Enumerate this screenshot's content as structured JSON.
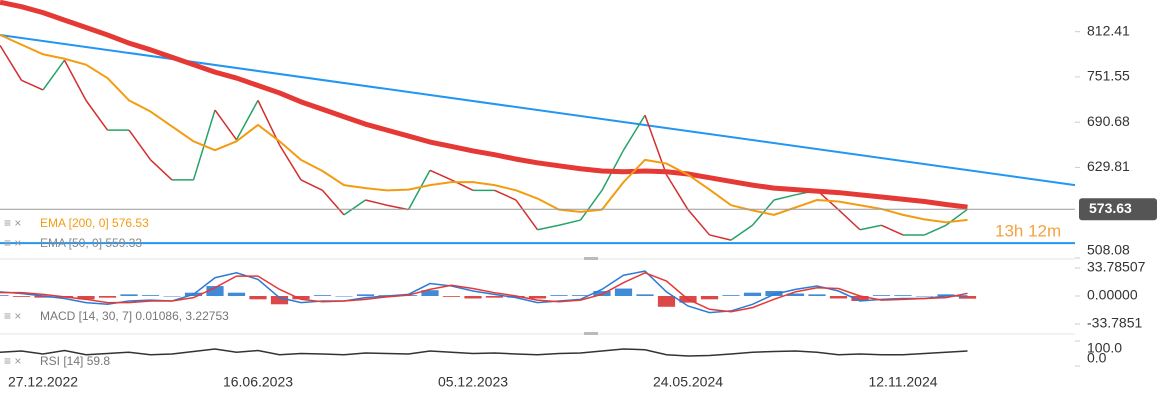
{
  "chart_data": [
    {
      "type": "line",
      "categories": [
        null,
        null,
        "27.12.2022",
        null,
        null,
        null,
        null,
        null,
        null,
        null,
        null,
        null,
        "16.06.2023",
        null,
        null,
        null,
        null,
        null,
        null,
        null,
        null,
        null,
        "05.12.2023",
        null,
        null,
        null,
        null,
        null,
        null,
        null,
        null,
        null,
        "24.05.2024",
        null,
        null,
        null,
        null,
        null,
        null,
        null,
        null,
        null,
        "12.11.2024",
        null,
        null,
        null
      ],
      "ylim": [
        508,
        855
      ],
      "yticks": [
        812.41,
        751.55,
        690.68,
        629.81,
        508.08
      ],
      "up_color": "#26a269",
      "down_color": "#d32f2f",
      "series": [
        {
          "values": [
            794,
            747,
            734,
            774,
            720,
            680,
            680,
            640,
            613,
            613,
            707,
            667,
            720,
            660,
            613,
            599,
            566,
            586,
            579,
            573,
            626,
            613,
            599,
            599,
            586,
            546,
            552,
            559,
            599,
            653,
            700,
            620,
            573,
            539,
            532,
            552,
            586,
            593,
            599,
            573,
            546,
            552,
            539,
            539,
            552,
            573.63
          ],
          "price_label": "573.63"
        },
        {
          "name": "EMA [200, 0] 576.53",
          "color": "#e53935",
          "values": [
            852,
            846,
            838,
            828,
            818,
            808,
            797,
            788,
            778,
            768,
            758,
            750,
            740,
            730,
            718,
            708,
            698,
            688,
            680,
            672,
            664,
            658,
            652,
            647,
            641,
            636,
            632,
            628,
            625,
            624,
            625,
            624,
            621,
            616,
            611,
            606,
            602,
            600,
            598,
            596,
            593,
            590,
            587,
            584,
            580,
            576.53
          ]
        },
        {
          "name": "EMA [50, 0] 559.33",
          "color": "#f39c12",
          "values": [
            808,
            795,
            782,
            776,
            768,
            750,
            720,
            705,
            685,
            665,
            653,
            665,
            687,
            665,
            640,
            625,
            606,
            602,
            599,
            600,
            606,
            610,
            610,
            606,
            599,
            588,
            573,
            570,
            573,
            610,
            640,
            635,
            620,
            600,
            579,
            572,
            566,
            576,
            586,
            584,
            579,
            574,
            566,
            560,
            556,
            559.33
          ]
        }
      ],
      "trendlines": [
        {
          "y": [
            808,
            606
          ],
          "color": "#2196f3"
        },
        {
          "y": [
            528,
            528
          ],
          "color": "#2196f3"
        }
      ],
      "countdown": "13h 12m"
    },
    {
      "type": "macd",
      "legend": "MACD [14, 30, 7] 0.01086, 3.22753",
      "ylim": [
        -43.4,
        43.4
      ],
      "yticks": [
        33.78507,
        {
          "value": 0,
          "label": "0.00000"
        },
        -33.7851
      ],
      "series": [
        {
          "style": "histogram",
          "up_color": "#1f77d0",
          "down_color": "#d62728",
          "values": [
            1,
            -1,
            -2,
            -2,
            -4,
            -2,
            2,
            1,
            0,
            4,
            12,
            4,
            -4,
            -10,
            -4,
            1,
            0,
            2,
            1,
            1,
            7,
            -1,
            -3,
            -2,
            -2,
            -3,
            1,
            1,
            6,
            9,
            2,
            -13,
            -8,
            -4,
            1,
            4,
            6,
            3,
            2,
            -3,
            -6,
            1,
            1,
            0,
            2,
            -3.21667
          ]
        },
        {
          "style": "line",
          "color": "#2b7bd6",
          "values": [
            5,
            3,
            0,
            -3,
            -8,
            -10,
            -6,
            -5,
            -6,
            2,
            22,
            28,
            20,
            -2,
            -8,
            -6,
            -6,
            -2,
            0,
            2,
            15,
            12,
            6,
            2,
            -2,
            -8,
            -6,
            -4,
            8,
            25,
            30,
            5,
            -12,
            -20,
            -18,
            -10,
            2,
            8,
            12,
            6,
            -6,
            -4,
            -3,
            -3,
            0,
            0.01086
          ]
        },
        {
          "style": "line",
          "color": "#e53935",
          "values": [
            4,
            4,
            2,
            -1,
            -4,
            -8,
            -8,
            -6,
            -6,
            -2,
            10,
            24,
            24,
            8,
            -4,
            -7,
            -6,
            -4,
            -1,
            1,
            8,
            13,
            9,
            4,
            0,
            -5,
            -7,
            -5,
            2,
            16,
            28,
            18,
            -4,
            -16,
            -19,
            -14,
            -4,
            5,
            10,
            9,
            0,
            -5,
            -4,
            -3,
            -2,
            3.22753
          ]
        }
      ]
    },
    {
      "type": "rsi",
      "legend": "RSI [14] 59.8",
      "ylim": [
        0,
        100
      ],
      "yticks": [
        {
          "value": 100,
          "label": "100.0"
        },
        {
          "value": 0,
          "label": "0.0"
        }
      ],
      "series": [
        {
          "style": "line",
          "color": "#333333",
          "values": [
            55,
            60,
            48,
            62,
            45,
            50,
            55,
            45,
            48,
            58,
            68,
            55,
            62,
            45,
            50,
            48,
            45,
            52,
            50,
            48,
            60,
            55,
            50,
            52,
            48,
            45,
            50,
            52,
            60,
            68,
            65,
            45,
            40,
            42,
            48,
            55,
            58,
            60,
            55,
            45,
            48,
            45,
            45,
            50,
            55,
            59.8
          ]
        }
      ]
    }
  ]
}
